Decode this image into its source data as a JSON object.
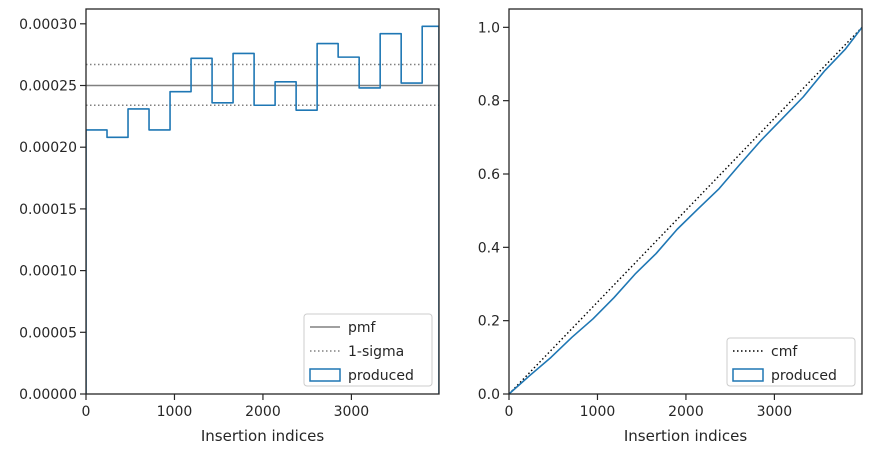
{
  "chart_data": [
    {
      "type": "line",
      "xlabel": "Insertion indices",
      "ylabel": "",
      "xlim": [
        0,
        3990
      ],
      "ylim": [
        0,
        0.000312
      ],
      "x_ticks": [
        0,
        1000,
        2000,
        3000
      ],
      "x_tick_labels": [
        "0",
        "1000",
        "2000",
        "3000"
      ],
      "y_ticks": [
        0,
        5e-05,
        0.0001,
        0.00015,
        0.0002,
        0.00025,
        0.0003
      ],
      "y_tick_labels": [
        "0.00000",
        "0.00005",
        "0.00010",
        "0.00015",
        "0.00020",
        "0.00025",
        "0.00030"
      ],
      "grid": false,
      "legend_position": "lower-right",
      "reference_lines": [
        {
          "name": "pmf",
          "y": 0.00025,
          "style": "solid",
          "color": "#808080"
        },
        {
          "name": "1-sigma",
          "y": 0.000267,
          "style": "dotted",
          "color": "#808080"
        },
        {
          "name": "1-sigma",
          "y": 0.000234,
          "style": "dotted",
          "color": "#808080"
        }
      ],
      "legend": [
        {
          "label": "pmf",
          "kind": "solid-line",
          "color": "#808080"
        },
        {
          "label": "1-sigma",
          "kind": "dotted-line",
          "color": "#808080"
        },
        {
          "label": "produced",
          "kind": "box",
          "color": "#1f77b4"
        }
      ],
      "series": [
        {
          "name": "produced",
          "kind": "step-histogram",
          "color": "#1f77b4",
          "bin_edges": [
            0,
            237.5,
            475,
            712.5,
            950,
            1187.5,
            1425,
            1662.5,
            1900,
            2137.5,
            2375,
            2612.5,
            2850,
            3087.5,
            3325,
            3562.5,
            3800,
            3990
          ],
          "values": [
            0.000214,
            0.000208,
            0.000231,
            0.000214,
            0.000245,
            0.000272,
            0.000236,
            0.000276,
            0.000234,
            0.000253,
            0.00023,
            0.000284,
            0.000273,
            0.000248,
            0.000292,
            0.000252,
            0.000298
          ]
        }
      ]
    },
    {
      "type": "line",
      "xlabel": "Insertion indices",
      "ylabel": "",
      "xlim": [
        0,
        3990
      ],
      "ylim": [
        0,
        1.05
      ],
      "x_ticks": [
        0,
        1000,
        2000,
        3000
      ],
      "x_tick_labels": [
        "0",
        "1000",
        "2000",
        "3000"
      ],
      "y_ticks": [
        0,
        0.2,
        0.4,
        0.6,
        0.8,
        1.0
      ],
      "y_tick_labels": [
        "0.0",
        "0.2",
        "0.4",
        "0.6",
        "0.8",
        "1.0"
      ],
      "grid": false,
      "legend_position": "lower-right",
      "legend": [
        {
          "label": "cmf",
          "kind": "dotted-line",
          "color": "#000000"
        },
        {
          "label": "produced",
          "kind": "box",
          "color": "#1f77b4"
        }
      ],
      "series": [
        {
          "name": "cmf",
          "style": "dotted",
          "color": "#000000",
          "x": [
            0,
            3990
          ],
          "y": [
            0,
            1.0
          ]
        },
        {
          "name": "produced",
          "style": "solid",
          "color": "#1f77b4",
          "x": [
            0,
            237.5,
            475,
            712.5,
            950,
            1187.5,
            1425,
            1662.5,
            1900,
            2137.5,
            2375,
            2612.5,
            2850,
            3087.5,
            3325,
            3562.5,
            3800,
            3990
          ],
          "y": [
            0,
            0.051,
            0.1,
            0.155,
            0.205,
            0.263,
            0.327,
            0.383,
            0.449,
            0.505,
            0.56,
            0.627,
            0.692,
            0.751,
            0.81,
            0.88,
            0.94,
            1.0
          ]
        }
      ]
    }
  ]
}
